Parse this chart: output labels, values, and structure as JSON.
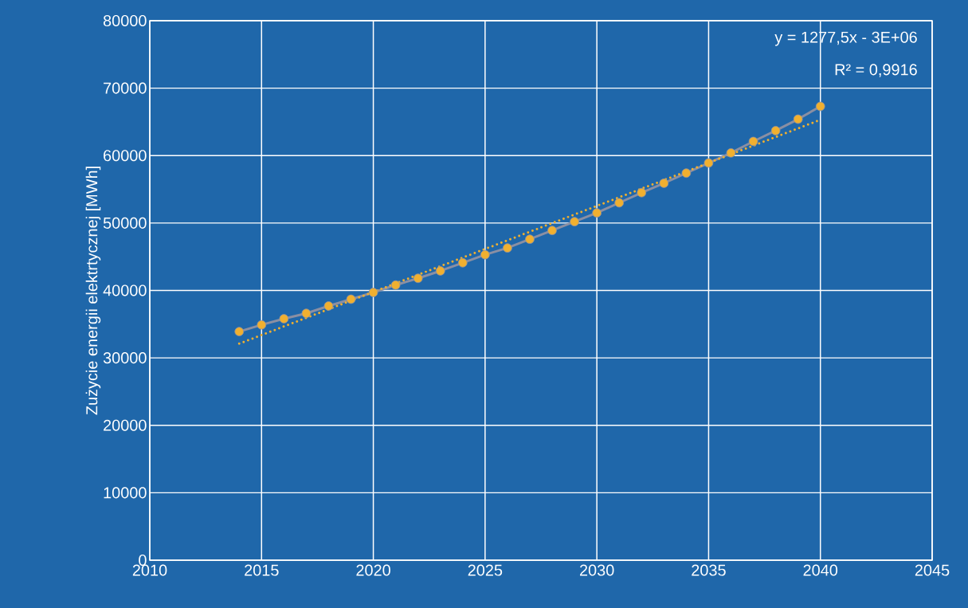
{
  "chart_data": {
    "type": "line",
    "ylabel": "Zużycie energii elektrtycznej [MWh]",
    "xlim": [
      2010,
      2045
    ],
    "xticks": [
      2010,
      2015,
      2020,
      2025,
      2030,
      2035,
      2040,
      2045
    ],
    "ylim": [
      0,
      80000
    ],
    "yticks": [
      0,
      10000,
      20000,
      30000,
      40000,
      50000,
      60000,
      70000,
      80000
    ],
    "grid": true,
    "marker": "circle",
    "line_style": "solid",
    "annotations": [
      "y = 1277,5x - 3E+06",
      "R² = 0,9916"
    ],
    "series": [
      {
        "color": "#8a8fa3",
        "x": [
          2014,
          2015,
          2016,
          2017,
          2018,
          2019,
          2020,
          2021,
          2022,
          2023,
          2024,
          2025,
          2026,
          2027,
          2028,
          2029,
          2030,
          2031,
          2032,
          2033,
          2034,
          2035,
          2036,
          2037,
          2038,
          2039,
          2040
        ],
        "values": [
          33900,
          34900,
          35800,
          36600,
          37700,
          38700,
          39700,
          40800,
          41800,
          42900,
          44100,
          45300,
          46300,
          47600,
          48900,
          50200,
          51500,
          53000,
          54500,
          55900,
          57400,
          58900,
          60400,
          62100,
          63700,
          65400,
          67300
        ]
      },
      {
        "type": "line",
        "color": "#f0b030",
        "marker": "none",
        "line_style": "dotted",
        "x": [
          2014,
          2040
        ],
        "values": [
          32100,
          65300
        ]
      }
    ]
  }
}
